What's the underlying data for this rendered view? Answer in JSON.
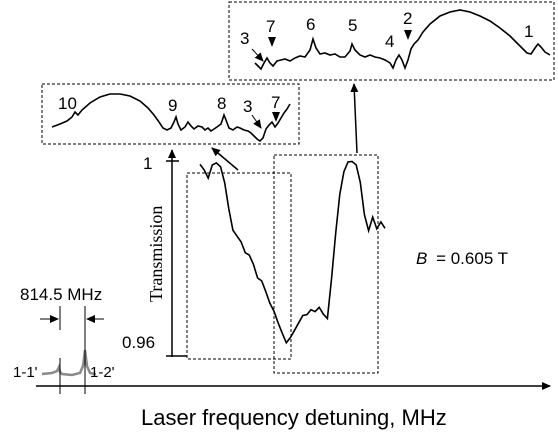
{
  "chart_data": {
    "type": "line",
    "title": "",
    "xlabel": "Laser frequency detuning, MHz",
    "ylabel": "Transmission",
    "y_ticks": [
      "1",
      "0.96"
    ],
    "ylim": [
      0.96,
      1
    ],
    "field_label": "B",
    "field_value": "= 0.605 T",
    "reference": {
      "spacing_label": "814.5 MHz",
      "peak_labels": [
        "1-1'",
        "1-2'"
      ]
    },
    "main_spectrum": {
      "x": [
        0,
        4,
        8,
        12,
        16,
        20,
        24,
        28,
        32,
        36,
        40,
        44,
        48,
        52,
        56,
        60,
        64,
        68,
        72,
        76,
        80,
        84,
        88,
        92,
        96,
        100,
        104,
        108,
        112,
        116,
        120,
        124,
        128,
        132,
        136,
        140,
        144,
        148,
        152,
        156,
        160,
        164,
        168,
        172,
        176,
        180
      ],
      "y": [
        0.9993,
        0.9982,
        0.9965,
        0.9992,
        0.9996,
        0.9988,
        0.9955,
        0.9902,
        0.9858,
        0.9846,
        0.9834,
        0.9812,
        0.9807,
        0.9788,
        0.976,
        0.9754,
        0.9732,
        0.9708,
        0.9692,
        0.9668,
        0.9647,
        0.9627,
        0.9638,
        0.9653,
        0.9668,
        0.9683,
        0.9685,
        0.9695,
        0.9691,
        0.97,
        0.9686,
        0.9677,
        0.976,
        0.9852,
        0.9932,
        0.9978,
        0.9998,
        0.9999,
        0.9992,
        0.9956,
        0.989,
        0.9857,
        0.9885,
        0.9861,
        0.9875,
        0.9862
      ]
    },
    "inset_left": {
      "peak_labels": [
        "10",
        "9",
        "8",
        "3",
        "7"
      ]
    },
    "inset_right": {
      "peak_labels": [
        "3",
        "7",
        "6",
        "5",
        "4",
        "2",
        "1"
      ]
    }
  }
}
